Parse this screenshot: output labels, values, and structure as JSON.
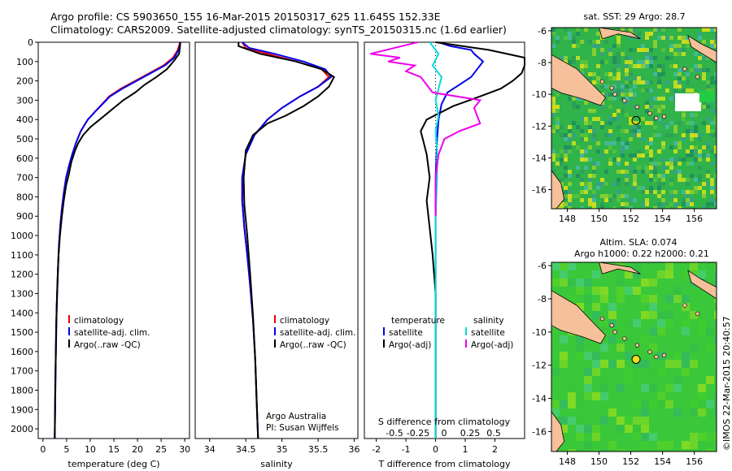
{
  "header": {
    "line1": "Argo profile: CS 5903650_155 16-Mar-2015 20150317_625 11.645S 152.33E",
    "line2": "Climatology: CARS2009. Satellite-adjusted climatology: synTS_20150315.nc (1.6d earlier)"
  },
  "side_credit": "©IMOS 22-Mar-2015 20:40:57",
  "colors": {
    "climatology": "#ee0000",
    "satellite": "#0000ee",
    "argo": "#000000",
    "cyan": "#00dddd",
    "magenta": "#ee00ee",
    "land": "#f5c09a"
  },
  "chart_data": [
    {
      "type": "line",
      "id": "temperature",
      "xlabel": "temperature (deg C)",
      "xlim": [
        -1,
        31
      ],
      "xticks": [
        "0",
        "5",
        "10",
        "15",
        "20",
        "25",
        "30"
      ],
      "ylim": [
        0,
        2050
      ],
      "yticks": [
        "0",
        "100",
        "200",
        "300",
        "400",
        "500",
        "600",
        "700",
        "800",
        "900",
        "1000",
        "1100",
        "1200",
        "1300",
        "1400",
        "1500",
        "1600",
        "1700",
        "1800",
        "1900",
        "2000"
      ],
      "legend": [
        "climatology",
        "satellite-adj. clim.",
        "Argo(..raw -QC)"
      ],
      "series": [
        {
          "name": "climatology",
          "color": "#ee0000",
          "x": [
            29,
            28.5,
            27.5,
            25.5,
            22.5,
            19.5,
            16.5,
            14,
            12.5,
            11,
            9.5,
            8,
            7,
            6.2,
            5.5,
            4.9,
            4.4,
            4,
            3.7,
            3.4,
            3.2,
            3,
            2.8,
            2.7,
            2.6,
            2.5
          ],
          "y": [
            0,
            40,
            80,
            120,
            160,
            200,
            240,
            280,
            320,
            360,
            400,
            460,
            520,
            580,
            640,
            700,
            780,
            860,
            940,
            1040,
            1160,
            1300,
            1460,
            1640,
            1860,
            2050
          ]
        },
        {
          "name": "satellite-adj. clim.",
          "color": "#0000ee",
          "x": [
            29.1,
            28.7,
            27.8,
            25.8,
            22.8,
            19.8,
            16.8,
            14.2,
            12.6,
            11,
            9.5,
            8,
            7,
            6.2,
            5.5,
            4.9,
            4.4,
            4,
            3.7,
            3.4,
            3.2,
            3,
            2.8,
            2.7,
            2.6,
            2.5
          ],
          "y": [
            0,
            40,
            80,
            120,
            160,
            200,
            240,
            280,
            320,
            360,
            400,
            460,
            520,
            580,
            640,
            700,
            780,
            860,
            940,
            1040,
            1160,
            1300,
            1460,
            1640,
            1860,
            2050
          ]
        },
        {
          "name": "Argo",
          "color": "#000000",
          "x": [
            29,
            29,
            28.8,
            27.6,
            26.2,
            24,
            21.5,
            19.5,
            17,
            15,
            14,
            12,
            10,
            8.5,
            7.5,
            6.8,
            6,
            5.5,
            4.9,
            4.4,
            4,
            3.6,
            3.3,
            3.1,
            2.9,
            2.8,
            2.6,
            2.5
          ],
          "y": [
            0,
            20,
            60,
            100,
            140,
            180,
            220,
            260,
            300,
            340,
            360,
            400,
            440,
            480,
            520,
            560,
            620,
            680,
            740,
            820,
            900,
            1000,
            1100,
            1220,
            1360,
            1520,
            1780,
            2050
          ]
        }
      ]
    },
    {
      "type": "line",
      "id": "salinity",
      "xlabel": "salinity",
      "xlim": [
        33.8,
        36.05
      ],
      "xticks": [
        "34",
        "34.5",
        "35",
        "35.5",
        "36"
      ],
      "ylim": [
        0,
        2050
      ],
      "legend": [
        "climatology",
        "satellite-adj. clim.",
        "Argo(..raw -QC)"
      ],
      "credit": [
        "Argo Australia",
        "PI: Susan Wijffels"
      ],
      "series": [
        {
          "name": "climatology",
          "color": "#ee0000",
          "x": [
            34.45,
            34.5,
            34.8,
            35.2,
            35.55,
            35.65,
            35.5,
            35.25,
            35.0,
            34.8,
            34.62,
            34.5,
            34.45,
            34.45,
            34.48,
            34.52,
            34.56,
            34.6,
            34.63,
            34.65,
            34.67
          ],
          "y": [
            0,
            30,
            60,
            100,
            140,
            180,
            230,
            280,
            340,
            400,
            480,
            580,
            700,
            820,
            960,
            1100,
            1260,
            1440,
            1640,
            1860,
            2050
          ]
        },
        {
          "name": "satellite-adj. clim.",
          "color": "#0000ee",
          "x": [
            34.45,
            34.55,
            34.9,
            35.3,
            35.6,
            35.68,
            35.5,
            35.25,
            35.0,
            34.8,
            34.62,
            34.5,
            34.45,
            34.45,
            34.48,
            34.52,
            34.56,
            34.6,
            34.63,
            34.65,
            34.67
          ],
          "y": [
            0,
            30,
            60,
            100,
            140,
            180,
            230,
            280,
            340,
            400,
            480,
            580,
            700,
            820,
            960,
            1100,
            1260,
            1440,
            1640,
            1860,
            2050
          ]
        },
        {
          "name": "Argo",
          "color": "#000000",
          "x": [
            34.4,
            34.4,
            34.7,
            35.2,
            35.55,
            35.72,
            35.65,
            35.5,
            35.3,
            35.05,
            34.8,
            34.6,
            34.5,
            34.47,
            34.48,
            34.52,
            34.56,
            34.6,
            34.63,
            34.65,
            34.67
          ],
          "y": [
            0,
            20,
            60,
            100,
            140,
            180,
            230,
            280,
            330,
            380,
            420,
            480,
            560,
            700,
            840,
            1000,
            1200,
            1420,
            1640,
            1860,
            2050
          ]
        }
      ]
    },
    {
      "type": "line",
      "id": "difference",
      "xlabel": "T difference from climatology",
      "xlabel_top": "S difference from climatology",
      "xlim": [
        -2.4,
        3.0
      ],
      "xticks": [
        "-2",
        "-1",
        "0",
        "1",
        "2"
      ],
      "s_xticks": [
        "-0.5",
        "-0.25",
        "0",
        "0.25",
        "0.5"
      ],
      "ylim": [
        0,
        2050
      ],
      "legend_left_title": "temperature",
      "legend_right_title": "salinity",
      "legend_left": [
        "satellite",
        "Argo(-adj)"
      ],
      "legend_right": [
        "satellite",
        "Argo(-adj)"
      ],
      "series": [
        {
          "name": "T satellite",
          "color": "#0000ee",
          "x": [
            0.1,
            0.5,
            1.2,
            1.3,
            1.6,
            1.4,
            1.2,
            0.8,
            0.4,
            0.2,
            0.1,
            0.05,
            0,
            0,
            0
          ],
          "y": [
            0,
            20,
            40,
            60,
            100,
            140,
            180,
            220,
            260,
            320,
            400,
            500,
            700,
            1000,
            2050
          ]
        },
        {
          "name": "T Argo(-adj)",
          "color": "#000000",
          "x": [
            0,
            1.8,
            3.0,
            3.0,
            2.9,
            2.6,
            2.2,
            1.5,
            0.6,
            -0.3,
            -0.5,
            -0.4,
            -0.3,
            -0.2,
            -0.3,
            -0.2,
            -0.1,
            0,
            0,
            0
          ],
          "y": [
            0,
            40,
            80,
            120,
            160,
            200,
            240,
            280,
            330,
            400,
            460,
            520,
            580,
            700,
            820,
            960,
            1100,
            1300,
            1600,
            2050
          ]
        },
        {
          "name": "S satellite",
          "color": "#00dddd",
          "x": [
            -0.2,
            0.1,
            -0.1,
            0.2,
            0.1,
            0,
            0.1,
            0,
            0.05,
            0.05,
            0,
            0,
            0,
            0
          ],
          "y": [
            0,
            60,
            120,
            180,
            240,
            300,
            380,
            460,
            560,
            700,
            900,
            1200,
            1600,
            2050
          ]
        },
        {
          "name": "S Argo(-adj)",
          "color": "#ee00ee",
          "x": [
            -0.6,
            -2.2,
            -1.2,
            -1.6,
            -0.7,
            -1.0,
            -0.5,
            -0.3,
            -0.1,
            1.5,
            1.3,
            1.4,
            1.5,
            0.8,
            0.3,
            0.1,
            0,
            0
          ],
          "y": [
            0,
            60,
            80,
            100,
            120,
            150,
            180,
            220,
            260,
            300,
            340,
            380,
            420,
            460,
            500,
            580,
            700,
            900
          ]
        }
      ]
    }
  ],
  "maps": [
    {
      "id": "sst-map",
      "title": "sat. SST: 29 Argo: 28.7",
      "xticks": [
        "148",
        "150",
        "152",
        "154",
        "156"
      ],
      "yticks": [
        "-6",
        "-8",
        "-10",
        "-12",
        "-14",
        "-16"
      ],
      "marker_lon": 152.33,
      "marker_lat": -11.645
    },
    {
      "id": "sla-map",
      "title1": "Altim. SLA: 0.074",
      "title2": "Argo h1000: 0.22 h2000: 0.21",
      "xticks": [
        "148",
        "150",
        "152",
        "154",
        "156"
      ],
      "yticks": [
        "-6",
        "-8",
        "-10",
        "-12",
        "-14",
        "-16"
      ],
      "marker_lon": 152.33,
      "marker_lat": -11.645
    }
  ]
}
